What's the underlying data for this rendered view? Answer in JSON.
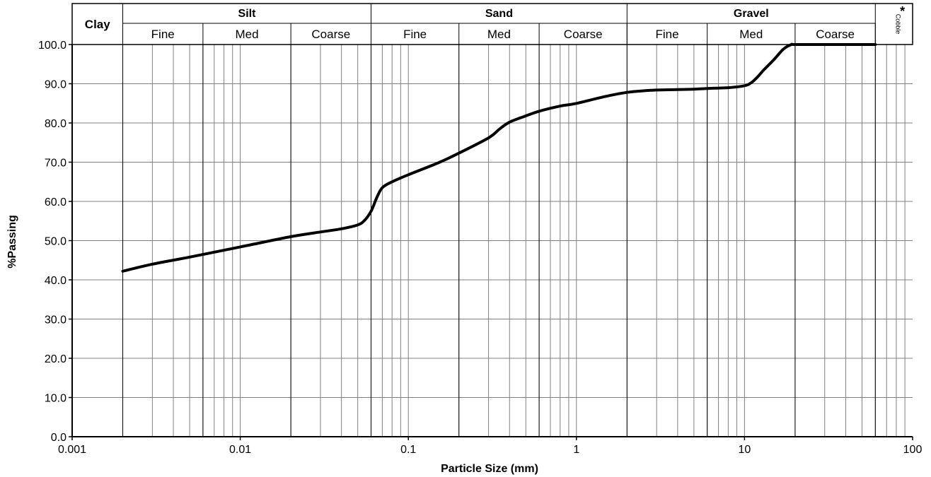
{
  "chart_data": {
    "type": "line",
    "title": "",
    "xlabel": "Particle Size (mm)",
    "ylabel": "%Passing",
    "x_scale": "log",
    "xlim": [
      0.001,
      100
    ],
    "ylim": [
      0,
      100
    ],
    "grid": true,
    "x_tick_labels": [
      "0.001",
      "0.01",
      "0.1",
      "1",
      "10",
      "100"
    ],
    "y_tick_labels": [
      "0.0",
      "10.0",
      "20.0",
      "30.0",
      "40.0",
      "50.0",
      "60.0",
      "70.0",
      "80.0",
      "90.0",
      "100.0"
    ],
    "classification": {
      "clay": "Clay",
      "cobble": "Cobble",
      "asterisk": "*",
      "groups": [
        {
          "name": "Silt",
          "from": 0.002,
          "to": 0.06,
          "subs": [
            {
              "label": "Fine",
              "from": 0.002,
              "to": 0.006
            },
            {
              "label": "Med",
              "from": 0.006,
              "to": 0.02
            },
            {
              "label": "Coarse",
              "from": 0.02,
              "to": 0.06
            }
          ]
        },
        {
          "name": "Sand",
          "from": 0.06,
          "to": 2,
          "subs": [
            {
              "label": "Fine",
              "from": 0.06,
              "to": 0.2
            },
            {
              "label": "Med",
              "from": 0.2,
              "to": 0.6
            },
            {
              "label": "Coarse",
              "from": 0.6,
              "to": 2
            }
          ]
        },
        {
          "name": "Gravel",
          "from": 2,
          "to": 60,
          "subs": [
            {
              "label": "Fine",
              "from": 2,
              "to": 6
            },
            {
              "label": "Med",
              "from": 6,
              "to": 20
            },
            {
              "label": "Coarse",
              "from": 20,
              "to": 60
            }
          ]
        }
      ]
    },
    "series": [
      {
        "x": [
          0.002,
          0.003,
          0.005,
          0.01,
          0.02,
          0.03,
          0.04,
          0.05,
          0.055,
          0.06,
          0.065,
          0.07,
          0.08,
          0.1,
          0.15,
          0.2,
          0.3,
          0.35,
          0.4,
          0.5,
          0.6,
          0.8,
          1.0,
          1.5,
          2.0,
          2.5,
          3.0,
          4.0,
          5.0,
          6.0,
          8.0,
          10.0,
          11.0,
          12.0,
          13.0,
          15.0,
          17.0,
          19.0,
          20.0,
          30.0,
          60.0
        ],
        "y": [
          42.2,
          44.0,
          45.8,
          48.4,
          51.0,
          52.2,
          53.0,
          54.0,
          55.2,
          57.5,
          61.0,
          63.5,
          65.0,
          66.8,
          69.8,
          72.3,
          76.2,
          78.5,
          80.2,
          81.8,
          83.0,
          84.3,
          85.0,
          86.8,
          87.8,
          88.2,
          88.4,
          88.5,
          88.6,
          88.8,
          89.0,
          89.5,
          90.3,
          91.8,
          93.5,
          96.2,
          98.8,
          100.0,
          100.0,
          100.0,
          100.0
        ]
      }
    ]
  }
}
